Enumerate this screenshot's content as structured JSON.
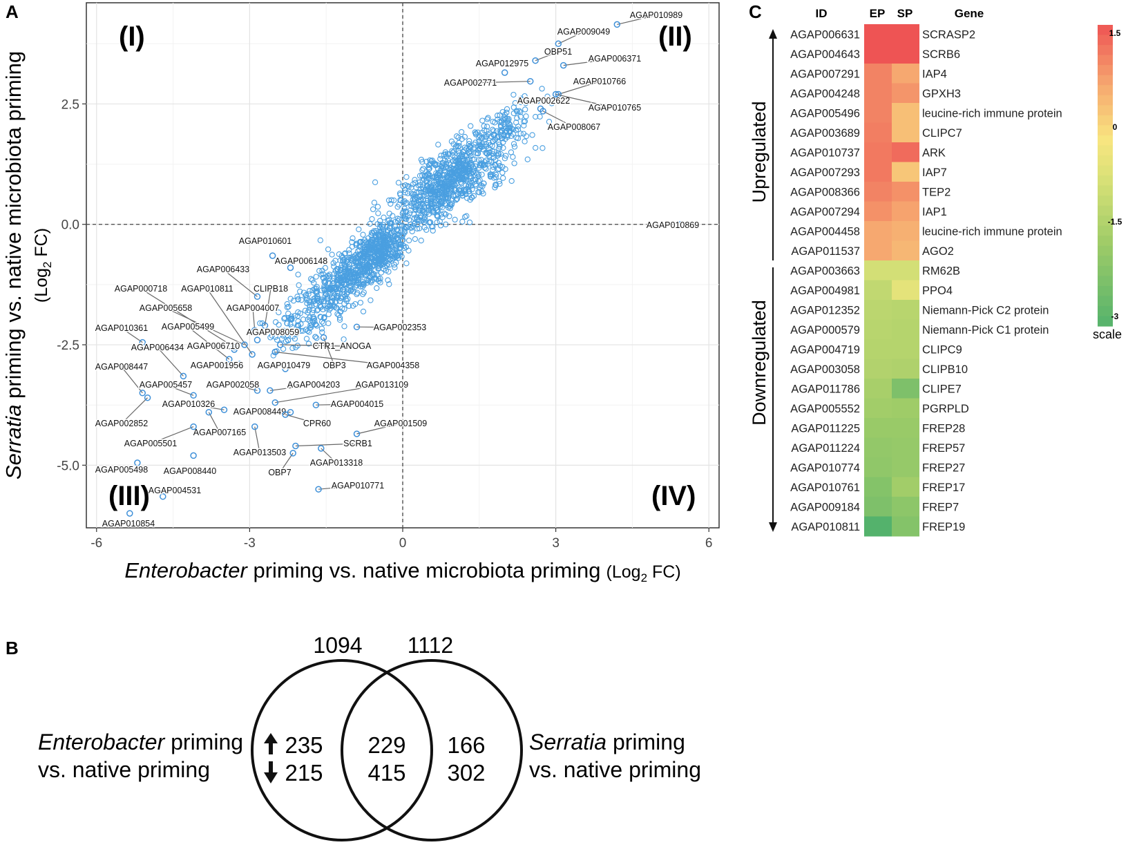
{
  "panel_letters": {
    "a": "A",
    "b": "B",
    "c": "C"
  },
  "chart_data": [
    {
      "type": "scatter",
      "panel": "A",
      "xlabel_italic": "Enterobacter",
      "xlabel_rest": " priming vs. native microbiota priming",
      "xlabel_unit": "(Log",
      "xlabel_sub": "2",
      "xlabel_unit_end": " FC)",
      "ylabel_italic": "Serratia",
      "ylabel_rest": " priming vs. native microbiota priming",
      "ylabel_unit": "(Log",
      "ylabel_sub": "2",
      "ylabel_unit_end": " FC)",
      "xlim": [
        -6.2,
        6.2
      ],
      "ylim": [
        -6.3,
        4.6
      ],
      "xticks": [
        -6,
        -3,
        0,
        3,
        6
      ],
      "yticks": [
        2.5,
        0.0,
        -2.5,
        -5.0
      ],
      "ytick_labels": [
        "2.5",
        "0.0",
        "-2.5",
        "-5.0"
      ],
      "quadrants": [
        "(I)",
        "(II)",
        "(III)",
        "(IV)"
      ],
      "grid": true,
      "cluster_note": "dense cloud of ~2000 background genes along the diagonal (drawn procedurally)",
      "labeled_points": [
        {
          "label": "AGAP010989",
          "x": 4.2,
          "y": 4.15
        },
        {
          "label": "AGAP009049",
          "x": 3.05,
          "y": 3.75
        },
        {
          "label": "OBP51",
          "x": 2.6,
          "y": 3.4
        },
        {
          "label": "AGAP006371",
          "x": 3.15,
          "y": 3.3
        },
        {
          "label": "AGAP012975",
          "x": 2.0,
          "y": 3.15
        },
        {
          "label": "AGAP002771",
          "x": 2.5,
          "y": 2.97
        },
        {
          "label": "AGAP010766",
          "x": 3.05,
          "y": 2.7
        },
        {
          "label": "AGAP002622",
          "x": 2.7,
          "y": 2.4
        },
        {
          "label": "AGAP010765",
          "x": 3.0,
          "y": 2.7
        },
        {
          "label": "AGAP008067",
          "x": 2.75,
          "y": 2.35
        },
        {
          "label": "AGAP010869",
          "x": 5.45,
          "y": 0.0
        },
        {
          "label": "AGAP010601",
          "x": -2.55,
          "y": -0.65
        },
        {
          "label": "AGAP006148",
          "x": -2.2,
          "y": -0.9
        },
        {
          "label": "AGAP006433",
          "x": -2.85,
          "y": -1.5
        },
        {
          "label": "AGAP000718",
          "x": -3.3,
          "y": -2.55
        },
        {
          "label": "AGAP010811",
          "x": -2.95,
          "y": -2.7
        },
        {
          "label": "CLIPB18",
          "x": -2.7,
          "y": -2.1
        },
        {
          "label": "AGAP005658",
          "x": -3.1,
          "y": -2.5
        },
        {
          "label": "AGAP004007",
          "x": -2.9,
          "y": -2.2
        },
        {
          "label": "AGAP010361",
          "x": -5.1,
          "y": -2.45
        },
        {
          "label": "AGAP005499",
          "x": -3.4,
          "y": -2.8
        },
        {
          "label": "AGAP008059",
          "x": -2.85,
          "y": -2.4
        },
        {
          "label": "AGAP002353",
          "x": -0.9,
          "y": -2.13
        },
        {
          "label": "AGAP006434",
          "x": -4.3,
          "y": -3.15
        },
        {
          "label": "AGAP006710",
          "x": -3.3,
          "y": -2.6
        },
        {
          "label": "CTR1_ANOGA",
          "x": -2.4,
          "y": -2.5
        },
        {
          "label": "AGAP008447",
          "x": -5.1,
          "y": -3.5
        },
        {
          "label": "AGAP001956",
          "x": -3.2,
          "y": -2.9
        },
        {
          "label": "AGAP010479",
          "x": -2.3,
          "y": -3.0
        },
        {
          "label": "OBP3",
          "x": -1.55,
          "y": -2.35
        },
        {
          "label": "AGAP004358",
          "x": -2.5,
          "y": -2.65
        },
        {
          "label": "AGAP005457",
          "x": -4.1,
          "y": -3.55
        },
        {
          "label": "AGAP002058",
          "x": -2.85,
          "y": -3.45
        },
        {
          "label": "AGAP004203",
          "x": -2.6,
          "y": -3.45
        },
        {
          "label": "AGAP013109",
          "x": -2.5,
          "y": -3.7
        },
        {
          "label": "AGAP002852",
          "x": -5.0,
          "y": -3.6
        },
        {
          "label": "AGAP010326",
          "x": -3.5,
          "y": -3.85
        },
        {
          "label": "AGAP008449",
          "x": -2.2,
          "y": -3.9
        },
        {
          "label": "AGAP004015",
          "x": -1.7,
          "y": -3.75
        },
        {
          "label": "AGAP007165",
          "x": -3.8,
          "y": -3.9
        },
        {
          "label": "CPR60",
          "x": -2.3,
          "y": -3.95
        },
        {
          "label": "AGAP001509",
          "x": -0.9,
          "y": -4.35
        },
        {
          "label": "AGAP005501",
          "x": -4.1,
          "y": -4.2
        },
        {
          "label": "AGAP013503",
          "x": -2.9,
          "y": -4.2
        },
        {
          "label": "SCRB1",
          "x": -2.1,
          "y": -4.6
        },
        {
          "label": "AGAP005498",
          "x": -5.2,
          "y": -4.95
        },
        {
          "label": "AGAP008440",
          "x": -4.1,
          "y": -4.8
        },
        {
          "label": "OBP7",
          "x": -2.15,
          "y": -4.75
        },
        {
          "label": "AGAP013318",
          "x": -1.6,
          "y": -4.65
        },
        {
          "label": "AGAP004531",
          "x": -4.7,
          "y": -5.65
        },
        {
          "label": "AGAP010771",
          "x": -1.65,
          "y": -5.5
        },
        {
          "label": "AGAP010854",
          "x": -5.35,
          "y": -6.0
        }
      ]
    },
    {
      "type": "venn",
      "panel": "B",
      "set_sizes": [
        "1094",
        "1112"
      ],
      "left_label_italic": "Enterobacter",
      "left_label_rest": " priming",
      "left_label_line2": "vs. native priming",
      "right_label_italic": "Serratia",
      "right_label_rest": " priming",
      "right_label_line2": "vs. native priming",
      "left_only": {
        "up": "235",
        "down": "215"
      },
      "overlap": {
        "up": "229",
        "down": "415"
      },
      "right_only": {
        "up": "166",
        "down": "302"
      }
    },
    {
      "type": "heatmap",
      "panel": "C",
      "headers": {
        "id": "ID",
        "ep": "EP",
        "sp": "SP",
        "gene": "Gene"
      },
      "groups": {
        "up": "Upregulated",
        "down": "Downregulated"
      },
      "scale": {
        "label": "scale",
        "max": "1.5",
        "mid": "0",
        "low": "-1.5",
        "min": "-3",
        "range": [
          -3,
          1.5
        ]
      },
      "rows": [
        {
          "id": "AGAP006631",
          "ep": 1.5,
          "sp": 1.5,
          "gene": "SCRASP2"
        },
        {
          "id": "AGAP004643",
          "ep": 1.5,
          "sp": 1.5,
          "gene": "SCRB6"
        },
        {
          "id": "AGAP007291",
          "ep": 1.0,
          "sp": 0.6,
          "gene": "IAP4"
        },
        {
          "id": "AGAP004248",
          "ep": 1.0,
          "sp": 0.8,
          "gene": "GPXH3"
        },
        {
          "id": "AGAP005496",
          "ep": 1.0,
          "sp": 0.3,
          "gene": "leucine-rich immune protein"
        },
        {
          "id": "AGAP003689",
          "ep": 1.05,
          "sp": 0.3,
          "gene": "CLIPC7"
        },
        {
          "id": "AGAP010737",
          "ep": 1.1,
          "sp": 1.25,
          "gene": "ARK"
        },
        {
          "id": "AGAP007293",
          "ep": 1.1,
          "sp": 0.2,
          "gene": "IAP7"
        },
        {
          "id": "AGAP008366",
          "ep": 1.0,
          "sp": 0.85,
          "gene": "TEP2"
        },
        {
          "id": "AGAP007294",
          "ep": 0.85,
          "sp": 0.65,
          "gene": "IAP1"
        },
        {
          "id": "AGAP004458",
          "ep": 0.6,
          "sp": 0.5,
          "gene": "leucine-rich immune protein"
        },
        {
          "id": "AGAP011537",
          "ep": 0.6,
          "sp": 0.4,
          "gene": "AGO2"
        },
        {
          "id": "AGAP003663",
          "ep": -0.9,
          "sp": -0.9,
          "gene": "RM62B"
        },
        {
          "id": "AGAP004981",
          "ep": -1.2,
          "sp": -0.6,
          "gene": "PPO4"
        },
        {
          "id": "AGAP012352",
          "ep": -1.3,
          "sp": -1.35,
          "gene": "Niemann-Pick C2 protein"
        },
        {
          "id": "AGAP000579",
          "ep": -1.35,
          "sp": -1.4,
          "gene": "Niemann-Pick C1 protein"
        },
        {
          "id": "AGAP004719",
          "ep": -1.4,
          "sp": -1.4,
          "gene": "CLIPC9"
        },
        {
          "id": "AGAP003058",
          "ep": -1.45,
          "sp": -1.5,
          "gene": "CLIPB10"
        },
        {
          "id": "AGAP011786",
          "ep": -1.6,
          "sp": -2.3,
          "gene": "CLIPE7"
        },
        {
          "id": "AGAP005552",
          "ep": -1.7,
          "sp": -1.75,
          "gene": "PGRPLD"
        },
        {
          "id": "AGAP011225",
          "ep": -1.85,
          "sp": -1.85,
          "gene": "FREP28"
        },
        {
          "id": "AGAP011224",
          "ep": -1.95,
          "sp": -1.9,
          "gene": "FREP57"
        },
        {
          "id": "AGAP010774",
          "ep": -2.0,
          "sp": -1.9,
          "gene": "FREP27"
        },
        {
          "id": "AGAP010761",
          "ep": -2.2,
          "sp": -1.7,
          "gene": "FREP17"
        },
        {
          "id": "AGAP009184",
          "ep": -2.3,
          "sp": -2.05,
          "gene": "FREP7"
        },
        {
          "id": "AGAP010811",
          "ep": -3.0,
          "sp": -2.2,
          "gene": "FREP19"
        }
      ]
    }
  ]
}
